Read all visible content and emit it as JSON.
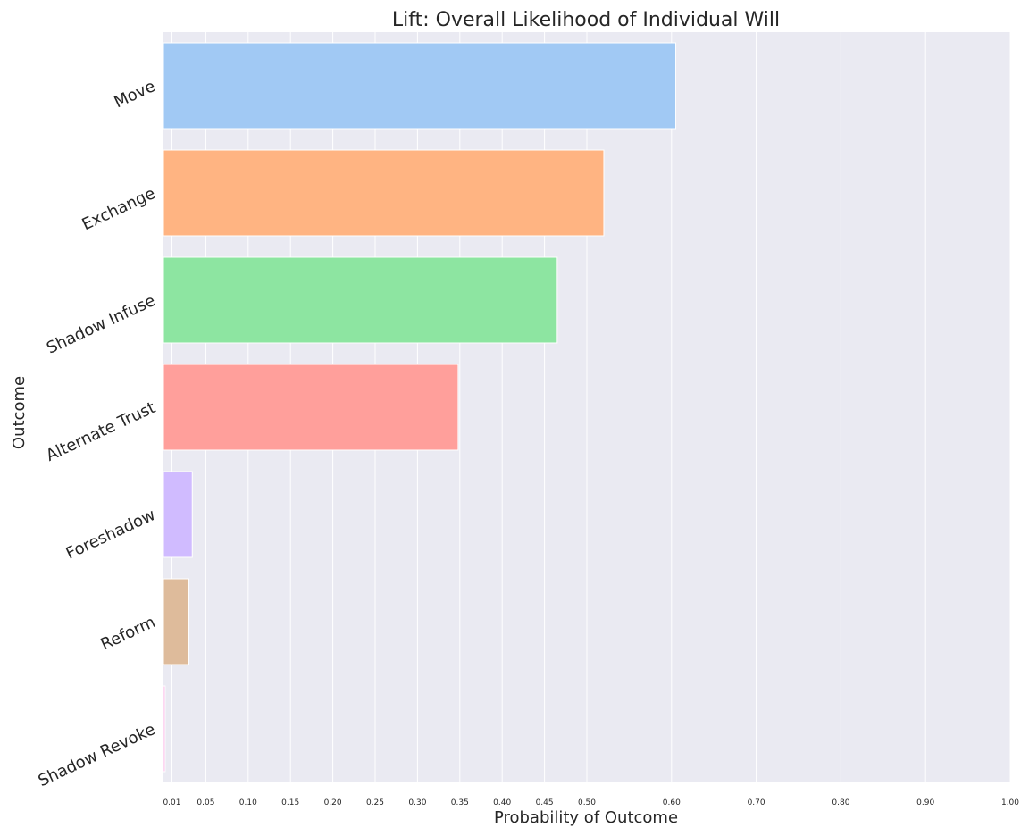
{
  "chart_data": {
    "type": "bar",
    "orientation": "horizontal",
    "title": "Lift: Overall Likelihood of Individual Will",
    "xlabel": "Probability of Outcome",
    "ylabel": "Outcome",
    "xlim": [
      0,
      1.0
    ],
    "x_ticks": [
      0.01,
      0.05,
      0.1,
      0.15,
      0.2,
      0.25,
      0.3,
      0.35,
      0.4,
      0.45,
      0.5,
      0.6,
      0.7,
      0.8,
      0.9,
      1.0
    ],
    "x_tick_labels": [
      "0.01",
      "0.05",
      "0.10",
      "0.15",
      "0.20",
      "0.25",
      "0.30",
      "0.35",
      "0.40",
      "0.45",
      "0.50",
      "0.60",
      "0.70",
      "0.80",
      "0.90",
      "1.00"
    ],
    "categories": [
      "Move",
      "Exchange",
      "Shadow Infuse",
      "Alternate Trust",
      "Foreshadow",
      "Reform",
      "Shadow Revoke"
    ],
    "values": [
      0.605,
      0.52,
      0.465,
      0.348,
      0.034,
      0.03,
      0.002
    ],
    "colors": [
      "#a1c9f4",
      "#ffb482",
      "#8de5a1",
      "#ff9f9b",
      "#d0bbff",
      "#debb9b",
      "#fab0e4"
    ],
    "grid": true,
    "background": "#eaeaf2",
    "legend": "none"
  }
}
